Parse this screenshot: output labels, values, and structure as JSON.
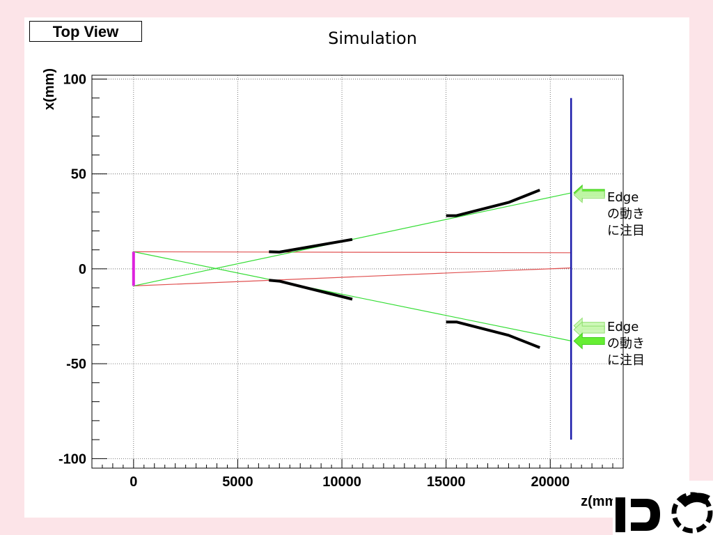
{
  "header": {
    "view_label": "Top View",
    "title": "Simulation"
  },
  "annotations": [
    {
      "lines": [
        "Edge",
        "の動き",
        "に注目"
      ]
    },
    {
      "lines": [
        "Edge",
        "の動き",
        "に注目"
      ]
    }
  ],
  "colors": {
    "page_background": "#fce4e8",
    "ray_red": "#e05050",
    "ray_green": "#33dd33",
    "detector_blue": "#1a1aaa",
    "source_magenta": "#dd22dd",
    "arrow_green": "#66ee33"
  },
  "chart_data": {
    "type": "line",
    "xlabel": "z(mm)",
    "ylabel": "x(mm)",
    "xlim": [
      -2000,
      23500
    ],
    "ylim": [
      -105,
      102
    ],
    "xticks": [
      0,
      5000,
      10000,
      15000,
      20000
    ],
    "yticks": [
      -100,
      -50,
      0,
      50,
      100
    ],
    "grid": true,
    "series": [
      {
        "color": "#e05050",
        "points": [
          [
            0,
            9
          ],
          [
            21000,
            8.5
          ]
        ]
      },
      {
        "color": "#e05050",
        "points": [
          [
            0,
            -9
          ],
          [
            21000,
            0.5
          ]
        ]
      },
      {
        "color": "#33dd33",
        "points": [
          [
            0,
            9
          ],
          [
            21000,
            -38
          ]
        ]
      },
      {
        "color": "#33dd33",
        "points": [
          [
            0,
            -9
          ],
          [
            21000,
            40
          ]
        ]
      },
      {
        "color": "#000000",
        "points": [
          [
            6500,
            9
          ],
          [
            7000,
            8.8
          ],
          [
            10500,
            15.5
          ]
        ]
      },
      {
        "color": "#000000",
        "points": [
          [
            6500,
            -6
          ],
          [
            7000,
            -6.5
          ],
          [
            10500,
            -16
          ]
        ]
      },
      {
        "color": "#000000",
        "points": [
          [
            15000,
            28
          ],
          [
            15500,
            28
          ],
          [
            18000,
            35
          ],
          [
            19500,
            41.5
          ]
        ]
      },
      {
        "color": "#000000",
        "points": [
          [
            15000,
            -28
          ],
          [
            15500,
            -28
          ],
          [
            18000,
            -35
          ],
          [
            19500,
            -41.5
          ]
        ]
      },
      {
        "color": "#1a1aaa",
        "points": [
          [
            21000,
            90
          ],
          [
            21000,
            -90
          ]
        ]
      },
      {
        "color": "#dd22dd",
        "points": [
          [
            0,
            9
          ],
          [
            0,
            -9
          ]
        ]
      }
    ]
  }
}
